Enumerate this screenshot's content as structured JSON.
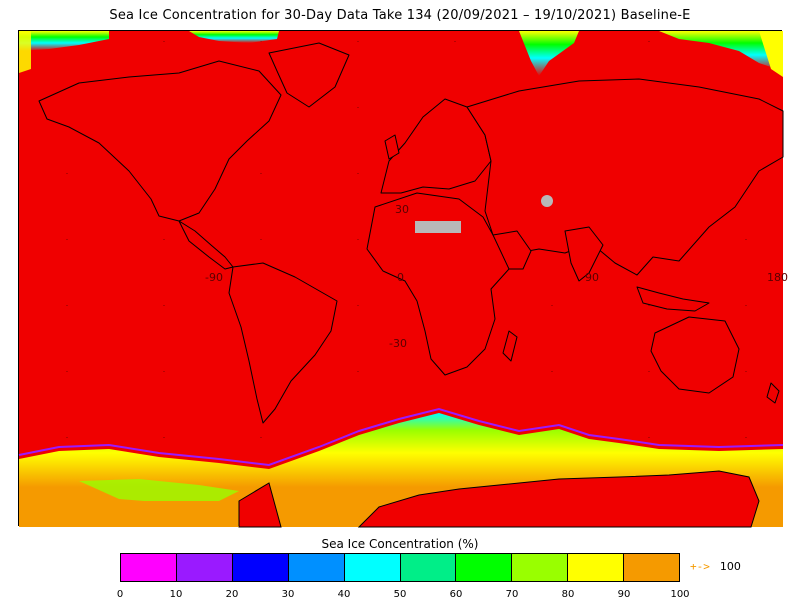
{
  "title": "Sea Ice Concentration for 30-Day Data Take 134 (20/09/2021 – 19/10/2021) Baseline-E",
  "map": {
    "background_color": "#f00000",
    "nodata_color": "#b8b8b8",
    "coastline_color": "#000000",
    "grid_labels": {
      "lon_minus_90": "-90",
      "lon_0": "0",
      "lon_90": "90",
      "lon_180": "180",
      "lat_30": "30",
      "lat_minus_30": "-30"
    }
  },
  "colorbar": {
    "title": "Sea Ice Concentration (%)",
    "colors": [
      "#ff00ff",
      "#9a1aff",
      "#0000ff",
      "#0090ff",
      "#00ffff",
      "#00ee88",
      "#00ff00",
      "#99ff00",
      "#ffff00",
      "#f59a00"
    ],
    "ticks": [
      "0",
      "10",
      "20",
      "30",
      "40",
      "50",
      "60",
      "70",
      "80",
      "90",
      "100"
    ],
    "overflow_arrow": "+->",
    "overflow_value": "100",
    "overflow_color": "#f59a00"
  }
}
